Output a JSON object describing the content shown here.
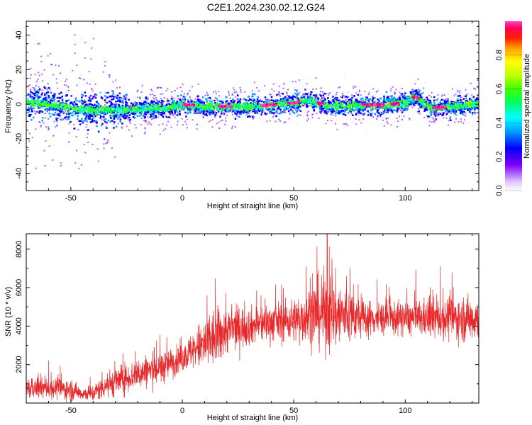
{
  "title": "C2E1.2024.230.02.12.G24",
  "chart_data": [
    {
      "type": "heatmap",
      "xlabel": "Height of straight line (km)",
      "ylabel": "Frequency (Hz)",
      "xlim": [
        -70,
        133
      ],
      "ylim": [
        -50,
        48
      ],
      "xticks": [
        -50,
        0,
        50,
        100
      ],
      "yticks": [
        -40,
        -20,
        0,
        20,
        40
      ],
      "colorbar": {
        "label": "Normalized spectral amplitude",
        "ticks": [
          0.0,
          0.2,
          0.4,
          0.6,
          0.8
        ],
        "range": [
          0,
          1
        ],
        "colormap": [
          "#e8d8ff",
          "#8000ff",
          "#0000ff",
          "#00a0ff",
          "#00ffff",
          "#00ff60",
          "#40ff00",
          "#c0ff00",
          "#ffff00",
          "#ffa000",
          "#ff2000",
          "#ff0080",
          "#ff40c0"
        ]
      },
      "ridge": {
        "x": [
          -70,
          -60,
          -50,
          -40,
          -30,
          -20,
          -10,
          0,
          10,
          20,
          30,
          40,
          50,
          55,
          60,
          70,
          80,
          90,
          100,
          104,
          108,
          112,
          120,
          133
        ],
        "y": [
          2,
          0,
          -2,
          -3,
          -3,
          -2,
          -2,
          0,
          -1,
          -1,
          -1,
          0,
          1,
          3,
          1,
          -1,
          0,
          0,
          1,
          5,
          1,
          -2,
          -1,
          1
        ]
      },
      "high_amplitude_segments": [
        [
          0,
          5
        ],
        [
          16,
          22
        ],
        [
          35,
          42
        ],
        [
          47,
          52
        ],
        [
          60,
          63
        ],
        [
          80,
          90
        ],
        [
          93,
          97
        ],
        [
          103,
          106
        ],
        [
          112,
          118
        ]
      ]
    },
    {
      "type": "line",
      "xlabel": "Height of straight line (km)",
      "ylabel": "SNR (10 * v/v)",
      "xlim": [
        -70,
        133
      ],
      "ylim": [
        0,
        8800
      ],
      "xticks": [
        -50,
        0,
        50,
        100
      ],
      "yticks": [
        2000,
        4000,
        6000,
        8000
      ],
      "series_color": "#e8282a",
      "envelope": {
        "x": [
          -70,
          -60,
          -50,
          -45,
          -40,
          -35,
          -30,
          -25,
          -20,
          -15,
          -10,
          -5,
          0,
          5,
          10,
          15,
          20,
          25,
          30,
          40,
          50,
          55,
          60,
          65,
          70,
          75,
          80,
          90,
          100,
          110,
          120,
          133
        ],
        "mean": [
          700,
          800,
          700,
          500,
          500,
          900,
          1100,
          1300,
          1500,
          1700,
          1800,
          2100,
          2300,
          2800,
          3000,
          3400,
          3800,
          3900,
          4000,
          4200,
          4300,
          4500,
          4700,
          4700,
          4600,
          4500,
          4400,
          4400,
          4400,
          4400,
          4400,
          4400
        ],
        "spread": [
          400,
          500,
          500,
          300,
          400,
          600,
          700,
          700,
          700,
          800,
          800,
          700,
          600,
          900,
          1300,
          1400,
          1100,
          1000,
          900,
          900,
          1000,
          1300,
          1600,
          1900,
          1700,
          1300,
          900,
          800,
          800,
          900,
          1000,
          1100
        ]
      },
      "peak": {
        "x": 65,
        "y": 8800
      }
    }
  ]
}
